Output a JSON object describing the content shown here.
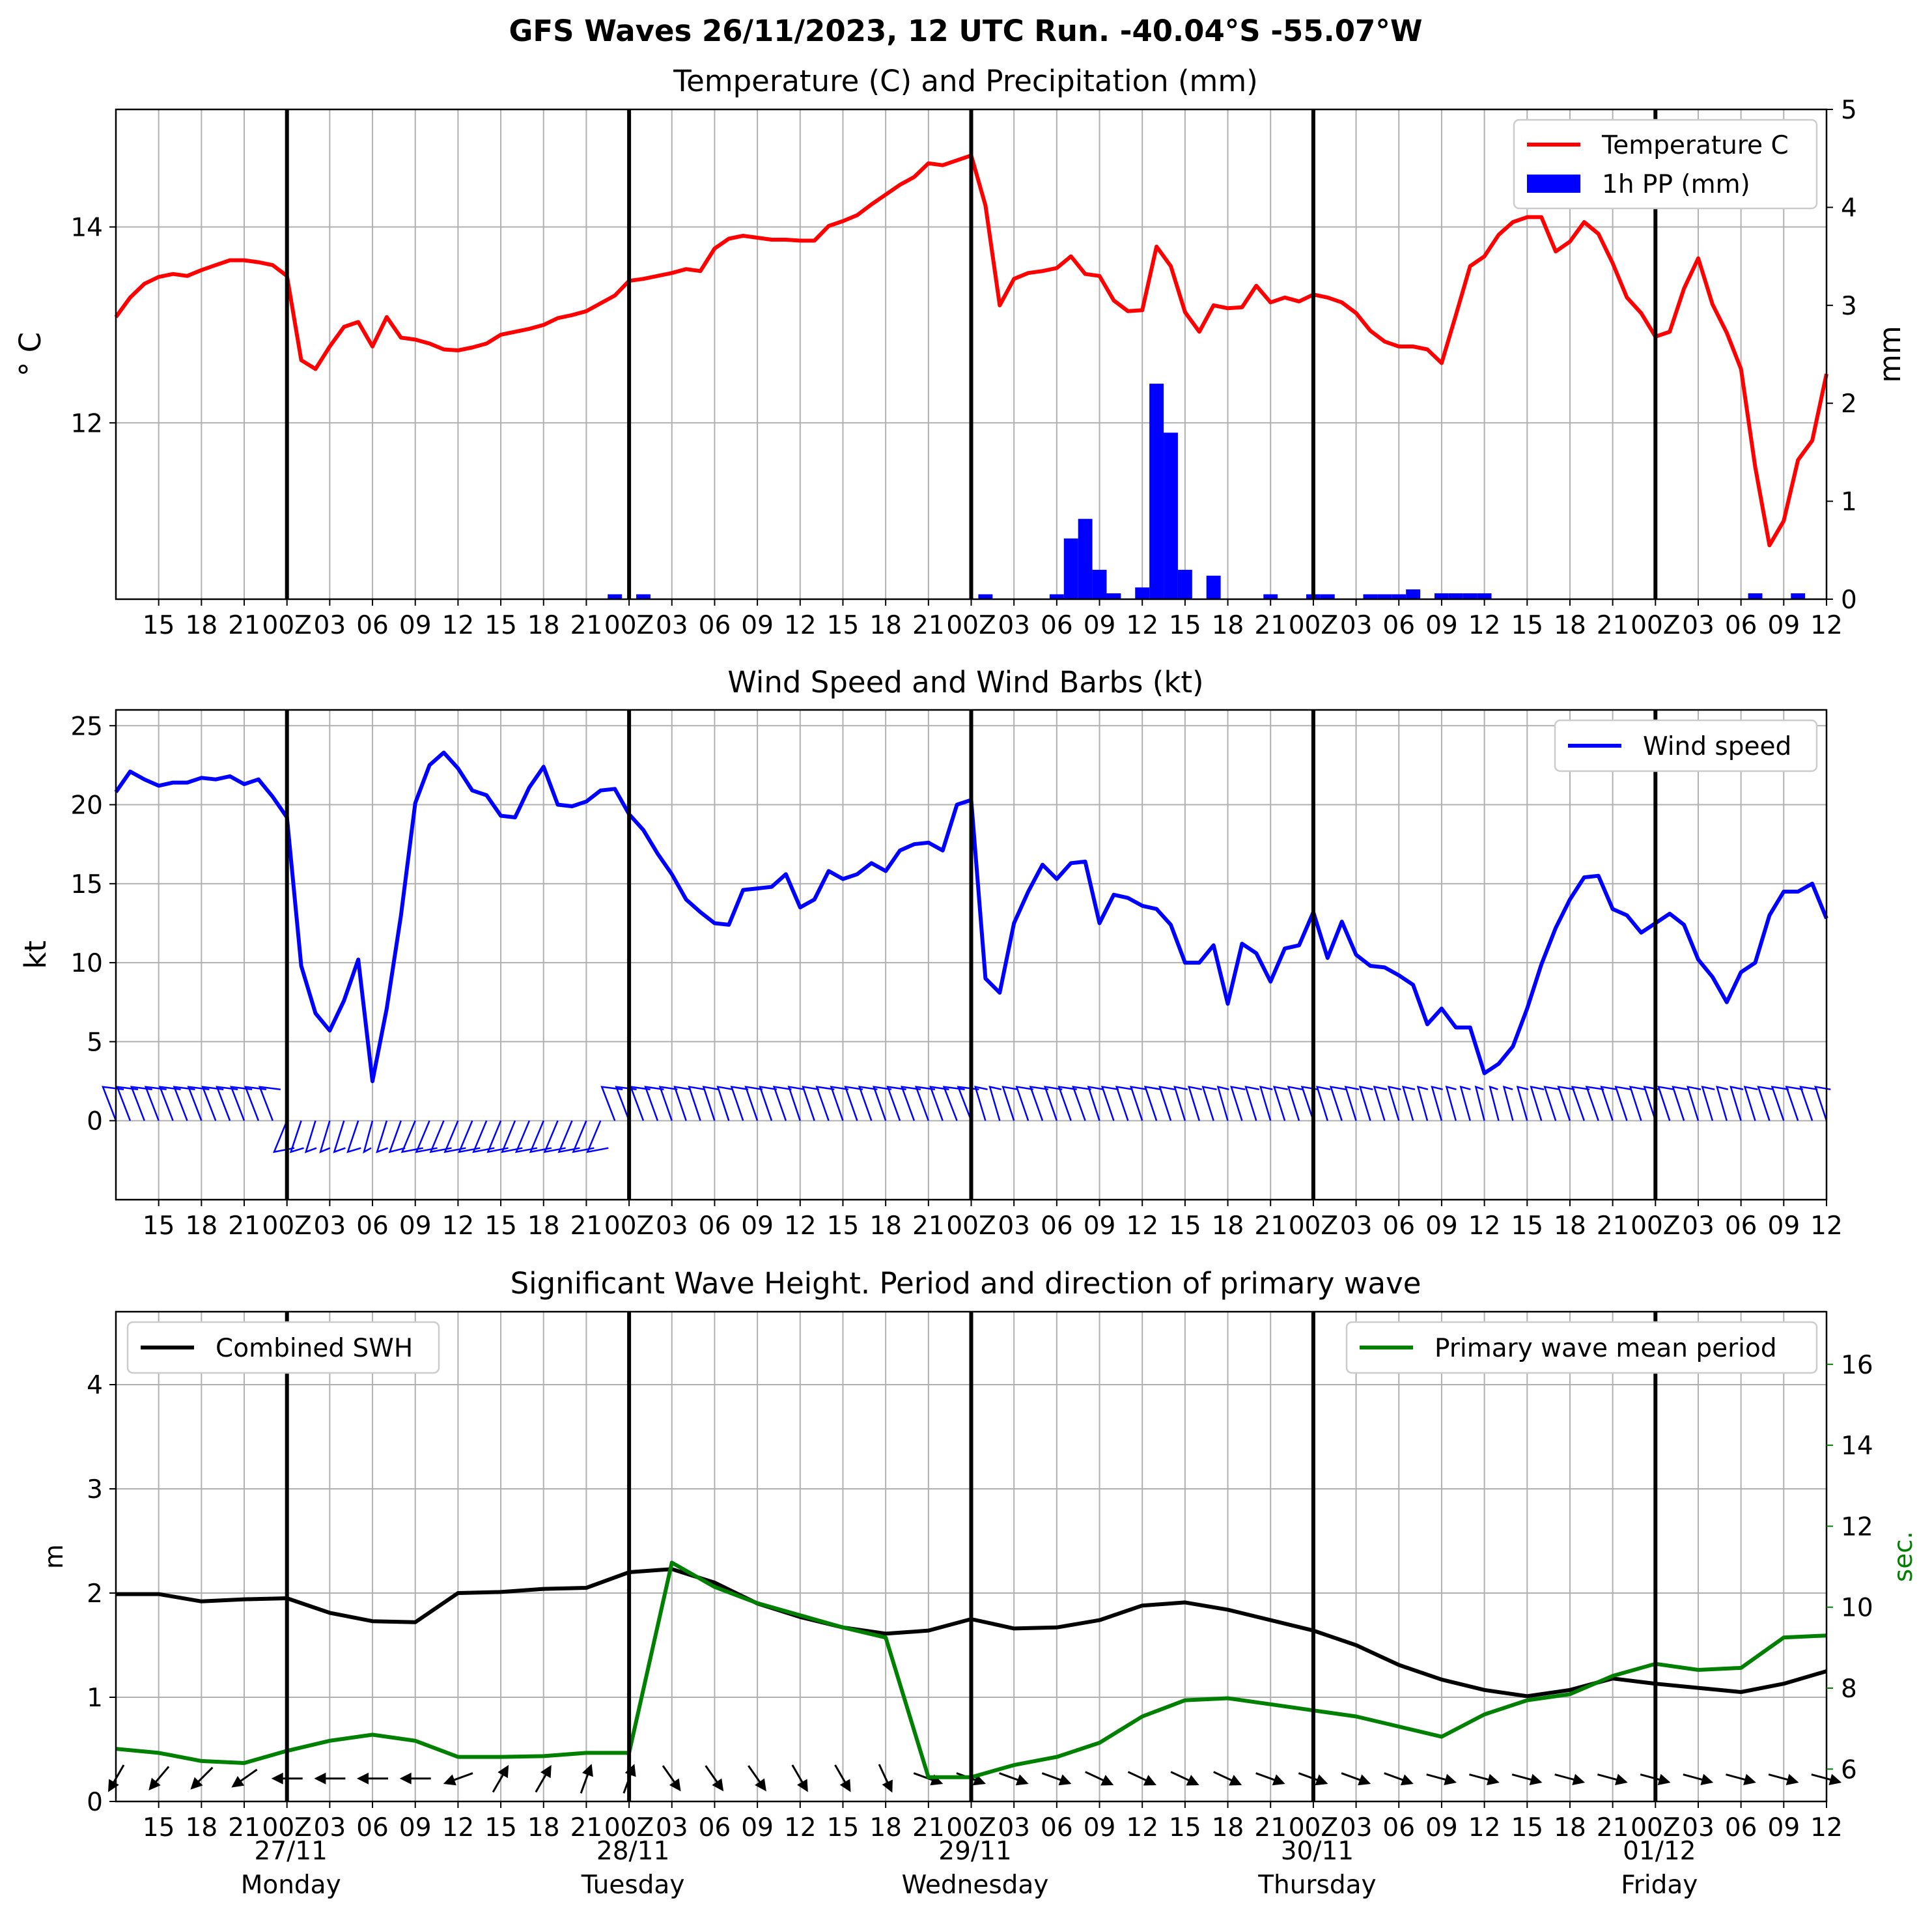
{
  "suptitle": "GFS Waves 26/11/2023, 12 UTC Run. -40.04°S -55.07°W",
  "x_axis": {
    "hour_labels": [
      "15",
      "18",
      "21",
      "00Z",
      "03",
      "06",
      "09",
      "12",
      "15",
      "18",
      "21",
      "00Z",
      "03",
      "06",
      "09",
      "12",
      "15",
      "18",
      "21",
      "00Z",
      "03",
      "06",
      "09",
      "12",
      "15",
      "18",
      "21",
      "00Z",
      "03",
      "06",
      "09",
      "12",
      "15",
      "18",
      "21",
      "00Z",
      "03",
      "06",
      "09",
      "12"
    ],
    "bottom_hour_labels": [
      "15",
      "18",
      "21",
      "00Z",
      "03",
      "06",
      "09",
      "12",
      "15",
      "18",
      "21",
      "00Z",
      "03",
      "06",
      "09",
      "12",
      "15",
      "18",
      "21",
      "00Z",
      "03",
      "06",
      "09",
      "12",
      "15",
      "18",
      "21",
      "00Z",
      "03",
      "06",
      "09",
      "12",
      "15",
      "18",
      "21",
      "00Z",
      "03",
      "06",
      "09",
      "12"
    ],
    "days": [
      {
        "date": "27/11",
        "weekday": "Monday"
      },
      {
        "date": "28/11",
        "weekday": "Tuesday"
      },
      {
        "date": "29/11",
        "weekday": "Wednesday"
      },
      {
        "date": "30/11",
        "weekday": "Thursday"
      },
      {
        "date": "01/12",
        "weekday": "Friday"
      }
    ]
  },
  "chart_data": [
    {
      "type": "line",
      "title": "Temperature (C) and Precipitation (mm)",
      "ylabel": "° C",
      "y2label": "mm",
      "ylim": [
        10.2,
        15.2
      ],
      "y2lim": [
        0,
        5
      ],
      "yticks": [
        "12",
        "14"
      ],
      "y2ticks": [
        "0",
        "1",
        "2",
        "3",
        "4",
        "5"
      ],
      "x_range_hours": [
        0,
        120
      ],
      "grid": true,
      "legend": {
        "position": "top-right",
        "entries": [
          "Temperature C",
          "1h PP (mm)"
        ]
      },
      "series": [
        {
          "name": "Temperature C",
          "color": "#ff0000",
          "x": [
            0,
            1,
            2,
            3,
            4,
            5,
            6,
            7,
            8,
            9,
            10,
            11,
            12,
            13,
            14,
            15,
            16,
            17,
            18,
            19,
            20,
            21,
            22,
            23,
            24,
            25,
            26,
            27,
            28,
            29,
            30,
            31,
            32,
            33,
            34,
            35,
            36,
            37,
            38,
            39,
            40,
            41,
            42,
            43,
            44,
            45,
            46,
            47,
            48,
            49,
            50,
            51,
            52,
            53,
            54,
            55,
            56,
            57,
            58,
            59,
            60,
            61,
            62,
            63,
            64,
            65,
            66,
            67,
            68,
            69,
            70,
            71,
            72,
            73,
            74,
            75,
            76,
            77,
            78,
            79,
            80,
            81,
            82,
            83,
            84,
            85,
            86,
            87,
            88,
            89,
            90,
            91,
            92,
            93,
            94,
            95,
            96,
            97,
            98,
            99,
            100,
            101,
            102,
            103,
            104,
            105,
            106,
            107,
            108,
            109,
            110,
            111,
            112,
            113,
            114,
            115,
            116,
            117,
            118,
            119,
            120
          ],
          "y": [
            13.08,
            13.28,
            13.42,
            13.49,
            13.52,
            13.5,
            13.56,
            13.61,
            13.66,
            13.66,
            13.64,
            13.61,
            13.5,
            12.64,
            12.55,
            12.78,
            12.98,
            13.03,
            12.78,
            13.08,
            12.87,
            12.85,
            12.81,
            12.75,
            12.74,
            12.77,
            12.81,
            12.9,
            12.93,
            12.96,
            13.0,
            13.07,
            13.1,
            13.14,
            13.22,
            13.3,
            13.45,
            13.47,
            13.5,
            13.53,
            13.57,
            13.55,
            13.78,
            13.88,
            13.91,
            13.89,
            13.87,
            13.87,
            13.86,
            13.86,
            14.01,
            14.06,
            14.12,
            14.23,
            14.33,
            14.43,
            14.51,
            14.65,
            14.63,
            14.68,
            14.73,
            14.22,
            13.2,
            13.47,
            13.53,
            13.55,
            13.58,
            13.7,
            13.52,
            13.5,
            13.25,
            13.14,
            13.15,
            13.8,
            13.6,
            13.13,
            12.93,
            13.2,
            13.17,
            13.18,
            13.4,
            13.23,
            13.28,
            13.24,
            13.31,
            13.28,
            13.23,
            13.12,
            12.94,
            12.83,
            12.78,
            12.78,
            12.75,
            12.61,
            13.1,
            13.6,
            13.7,
            13.92,
            14.05,
            14.1,
            14.1,
            13.75,
            13.85,
            14.05,
            13.93,
            13.63,
            13.28,
            13.12,
            12.88,
            12.93,
            13.37,
            13.68,
            13.21,
            12.92,
            12.55,
            11.55,
            10.75,
            11.0,
            11.62,
            11.82,
            12.5
          ]
        },
        {
          "name": "1h PP (mm)",
          "color": "#0000ff",
          "type": "bar",
          "axis": "right",
          "x": [
            35,
            37,
            61,
            66,
            67,
            68,
            69,
            70,
            72,
            73,
            74,
            75,
            77,
            81,
            84,
            85,
            88,
            89,
            90,
            91,
            93,
            94,
            95,
            96,
            115,
            118
          ],
          "y": [
            0.05,
            0.05,
            0.05,
            0.05,
            0.62,
            0.82,
            0.3,
            0.06,
            0.12,
            2.2,
            1.7,
            0.3,
            0.24,
            0.05,
            0.05,
            0.05,
            0.05,
            0.05,
            0.05,
            0.1,
            0.06,
            0.06,
            0.06,
            0.06,
            0.06,
            0.06
          ]
        }
      ]
    },
    {
      "type": "line",
      "title": "Wind Speed and Wind Barbs (kt)",
      "ylabel": "kt",
      "ylim": [
        -5,
        26
      ],
      "yticks": [
        "0",
        "5",
        "10",
        "15",
        "20",
        "25"
      ],
      "x_range_hours": [
        0,
        120
      ],
      "grid": true,
      "legend": {
        "position": "top-right",
        "entries": [
          "Wind speed"
        ]
      },
      "series": [
        {
          "name": "Wind speed",
          "color": "#0000ff",
          "x": [
            0,
            1,
            2,
            3,
            4,
            5,
            6,
            7,
            8,
            9,
            10,
            11,
            12,
            13,
            14,
            15,
            16,
            17,
            18,
            19,
            20,
            21,
            22,
            23,
            24,
            25,
            26,
            27,
            28,
            29,
            30,
            31,
            32,
            33,
            34,
            35,
            36,
            37,
            38,
            39,
            40,
            41,
            42,
            43,
            44,
            45,
            46,
            47,
            48,
            49,
            50,
            51,
            52,
            53,
            54,
            55,
            56,
            57,
            58,
            59,
            60,
            61,
            62,
            63,
            64,
            65,
            66,
            67,
            68,
            69,
            70,
            71,
            72,
            73,
            74,
            75,
            76,
            77,
            78,
            79,
            80,
            81,
            82,
            83,
            84,
            85,
            86,
            87,
            88,
            89,
            90,
            91,
            92,
            93,
            94,
            95,
            96,
            97,
            98,
            99,
            100,
            101,
            102,
            103,
            104,
            105,
            106,
            107,
            108,
            109,
            110,
            111,
            112,
            113,
            114,
            115,
            116,
            117,
            118,
            119,
            120
          ],
          "y": [
            20.8,
            22.1,
            21.6,
            21.2,
            21.4,
            21.4,
            21.7,
            21.6,
            21.8,
            21.3,
            21.6,
            20.5,
            19.2,
            9.8,
            6.8,
            5.7,
            7.6,
            10.2,
            2.5,
            7.1,
            13.0,
            20.1,
            22.5,
            23.3,
            22.3,
            20.9,
            20.6,
            19.3,
            19.2,
            21.1,
            22.4,
            20.0,
            19.9,
            20.2,
            20.9,
            21.0,
            19.4,
            18.4,
            16.9,
            15.6,
            14.0,
            13.2,
            12.5,
            12.4,
            14.6,
            14.7,
            14.8,
            15.6,
            13.5,
            14.0,
            15.8,
            15.3,
            15.6,
            16.3,
            15.8,
            17.1,
            17.5,
            17.6,
            17.1,
            20.0,
            20.3,
            9.0,
            8.1,
            12.5,
            14.5,
            16.2,
            15.3,
            16.3,
            16.4,
            12.5,
            14.3,
            14.1,
            13.6,
            13.4,
            12.4,
            10.0,
            10.0,
            11.1,
            7.4,
            11.2,
            10.6,
            8.8,
            10.9,
            11.1,
            13.2,
            10.3,
            12.6,
            10.5,
            9.8,
            9.7,
            9.2,
            8.6,
            6.1,
            7.1,
            5.9,
            5.9,
            3.0,
            3.6,
            4.7,
            7.1,
            9.9,
            12.2,
            14.0,
            15.4,
            15.5,
            13.4,
            13.0,
            11.9,
            12.5,
            13.1,
            12.4,
            10.2,
            9.1,
            7.5,
            9.4,
            10.0,
            13.0,
            14.5,
            14.5,
            15.0,
            12.8
          ]
        }
      ]
    },
    {
      "type": "line",
      "title": "Significant Wave Height. Period and direction of primary wave",
      "ylabel": "m",
      "y2label": "sec.",
      "ylim": [
        0,
        4.7
      ],
      "y2lim": [
        5.2,
        17.3
      ],
      "yticks": [
        "0",
        "1",
        "2",
        "3",
        "4"
      ],
      "y2ticks": [
        "6",
        "8",
        "10",
        "12",
        "14",
        "16"
      ],
      "x_range_hours": [
        0,
        120
      ],
      "grid": true,
      "legend": [
        {
          "position": "upper-left",
          "entries": [
            "Combined SWH"
          ]
        },
        {
          "position": "upper-right",
          "entries": [
            "Primary wave mean period"
          ]
        }
      ],
      "series": [
        {
          "name": "Combined SWH",
          "color": "#000000",
          "x": [
            0,
            3,
            6,
            9,
            12,
            15,
            18,
            21,
            24,
            27,
            30,
            33,
            36,
            39,
            42,
            45,
            48,
            51,
            54,
            57,
            60,
            63,
            66,
            69,
            72,
            75,
            78,
            81,
            84,
            87,
            90,
            93,
            96,
            99,
            102,
            105,
            108,
            111,
            114,
            117,
            120
          ],
          "y": [
            1.99,
            1.99,
            1.92,
            1.94,
            1.95,
            1.81,
            1.73,
            1.72,
            2.0,
            2.01,
            2.04,
            2.05,
            2.2,
            2.23,
            2.1,
            1.9,
            1.77,
            1.67,
            1.61,
            1.64,
            1.75,
            1.66,
            1.67,
            1.74,
            1.88,
            1.91,
            1.84,
            1.74,
            1.64,
            1.5,
            1.31,
            1.17,
            1.07,
            1.01,
            1.07,
            1.18,
            1.13,
            1.09,
            1.05,
            1.13,
            1.25
          ]
        },
        {
          "name": "Primary wave mean period",
          "color": "#008000",
          "axis": "right",
          "x": [
            0,
            3,
            6,
            9,
            12,
            15,
            18,
            21,
            24,
            27,
            30,
            33,
            36,
            39,
            42,
            45,
            48,
            51,
            54,
            57,
            60,
            63,
            66,
            69,
            72,
            75,
            78,
            81,
            84,
            87,
            90,
            93,
            96,
            99,
            102,
            105,
            108,
            111,
            114,
            117,
            120
          ],
          "y": [
            6.5,
            6.4,
            6.2,
            6.15,
            6.45,
            6.7,
            6.85,
            6.7,
            6.3,
            6.3,
            6.32,
            6.4,
            6.4,
            11.1,
            10.5,
            10.1,
            9.8,
            9.5,
            9.25,
            5.8,
            5.8,
            6.1,
            6.3,
            6.65,
            7.3,
            7.7,
            7.75,
            7.6,
            7.45,
            7.3,
            7.05,
            6.8,
            7.35,
            7.7,
            7.85,
            8.3,
            8.6,
            8.45,
            8.5,
            9.25,
            9.3
          ]
        }
      ],
      "direction_arrows": {
        "x": [
          0,
          3,
          6,
          9,
          12,
          15,
          18,
          21,
          24,
          27,
          30,
          33,
          36,
          39,
          42,
          45,
          48,
          51,
          54,
          57,
          60,
          63,
          66,
          69,
          72,
          75,
          78,
          81,
          84,
          87,
          90,
          93,
          96,
          99,
          102,
          105,
          108,
          111,
          114,
          117,
          120
        ],
        "to_direction_deg": [
          120,
          130,
          135,
          145,
          180,
          180,
          180,
          180,
          160,
          -60,
          -60,
          -70,
          -70,
          55,
          55,
          55,
          60,
          60,
          65,
          20,
          20,
          20,
          20,
          25,
          25,
          25,
          25,
          20,
          20,
          20,
          20,
          15,
          15,
          15,
          15,
          15,
          15,
          15,
          15,
          15,
          15
        ]
      }
    }
  ]
}
